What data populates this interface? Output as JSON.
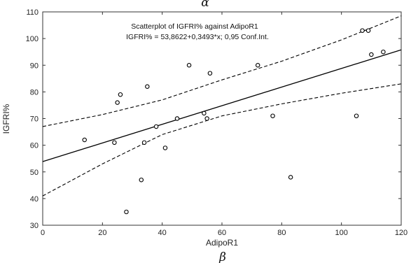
{
  "chart_data": {
    "type": "scatter",
    "title": "Scatterplot of IGFRI% against AdipoR1",
    "subtitle": "IGFRI% = 53,8622+0,3493*x; 0,95 Conf.Int.",
    "xlabel": "AdipoR1",
    "ylabel": "IGFRI%",
    "panel_label_top": "α",
    "panel_label_bottom": "β",
    "xlim": [
      0,
      120
    ],
    "ylim": [
      30,
      110
    ],
    "xticks": [
      0,
      20,
      40,
      60,
      80,
      100,
      120
    ],
    "yticks": [
      30,
      40,
      50,
      60,
      70,
      80,
      90,
      100,
      110
    ],
    "grid": false,
    "points": [
      {
        "x": 14,
        "y": 62
      },
      {
        "x": 24,
        "y": 61
      },
      {
        "x": 25,
        "y": 76
      },
      {
        "x": 26,
        "y": 79
      },
      {
        "x": 28,
        "y": 35
      },
      {
        "x": 33,
        "y": 47
      },
      {
        "x": 34,
        "y": 61
      },
      {
        "x": 35,
        "y": 82
      },
      {
        "x": 38,
        "y": 67
      },
      {
        "x": 41,
        "y": 59
      },
      {
        "x": 45,
        "y": 70
      },
      {
        "x": 49,
        "y": 90
      },
      {
        "x": 54,
        "y": 72
      },
      {
        "x": 55,
        "y": 70
      },
      {
        "x": 56,
        "y": 87
      },
      {
        "x": 72,
        "y": 90
      },
      {
        "x": 77,
        "y": 71
      },
      {
        "x": 83,
        "y": 48
      },
      {
        "x": 105,
        "y": 71
      },
      {
        "x": 107,
        "y": 103
      },
      {
        "x": 109,
        "y": 103
      },
      {
        "x": 110,
        "y": 94
      },
      {
        "x": 114,
        "y": 95
      }
    ],
    "regression": {
      "intercept": 53.8622,
      "slope": 0.3493
    },
    "confidence_band": {
      "x": [
        0,
        20,
        40,
        60,
        80,
        100,
        120
      ],
      "upper": [
        67.0,
        71.5,
        77.0,
        84.5,
        91.5,
        99.5,
        108.5
      ],
      "lower": [
        41.0,
        53.0,
        64.0,
        71.0,
        75.5,
        79.5,
        83.0
      ]
    },
    "colors": {
      "points": "#000000",
      "line": "#000000",
      "axes": "#333333"
    }
  }
}
